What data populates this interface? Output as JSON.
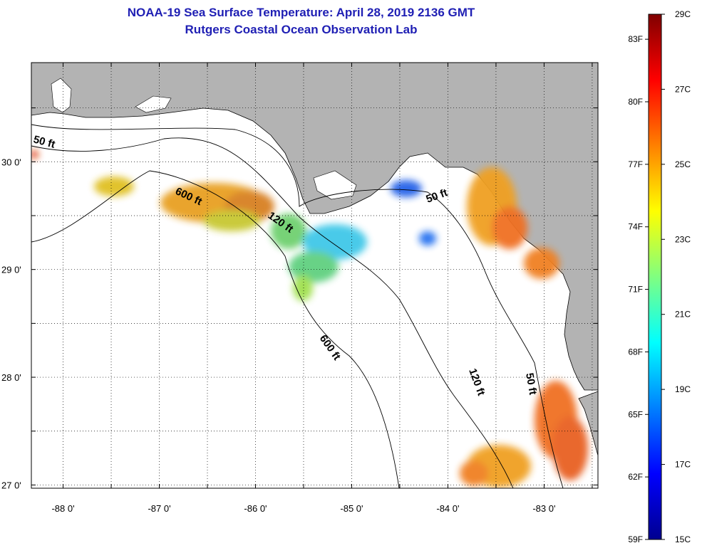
{
  "title": "NOAA-19 Sea Surface Temperature:  April 28, 2019 2136 GMT",
  "subtitle": "Rutgers Coastal Ocean Observation Lab",
  "map": {
    "lon_range": [
      -88.33,
      -82.44
    ],
    "lat_range": [
      26.97,
      30.92
    ],
    "lon_ticks": [
      {
        "value": -88,
        "label": "-88 0'"
      },
      {
        "value": -87,
        "label": "-87 0'"
      },
      {
        "value": -86,
        "label": "-86 0'"
      },
      {
        "value": -85,
        "label": "-85 0'"
      },
      {
        "value": -84,
        "label": "-84 0'"
      },
      {
        "value": -83,
        "label": "-83 0'"
      }
    ],
    "lat_ticks": [
      {
        "value": 30,
        "label": "30 0'"
      },
      {
        "value": 29,
        "label": "29 0'"
      },
      {
        "value": 28,
        "label": "28 0'"
      },
      {
        "value": 27,
        "label": "27 0'"
      }
    ],
    "land_color": "#b3b3b3",
    "water_color": "#ffffff",
    "grid": "dotted",
    "contours": [
      {
        "label": "50 ft"
      },
      {
        "label": "120 ft"
      },
      {
        "label": "600 ft"
      }
    ]
  },
  "colorbar": {
    "range_c": [
      15,
      29
    ],
    "celsius_labels": [
      "29C",
      "27C",
      "25C",
      "23C",
      "21C",
      "19C",
      "17C",
      "15C"
    ],
    "fahrenheit_labels": [
      "83F",
      "80F",
      "77F",
      "74F",
      "71F",
      "68F",
      "65F",
      "62F",
      "59F"
    ],
    "colormap": [
      "#00008f",
      "#0000ff",
      "#0080ff",
      "#00ffff",
      "#80ff80",
      "#ffff00",
      "#ff8000",
      "#ff0000",
      "#800000"
    ]
  }
}
